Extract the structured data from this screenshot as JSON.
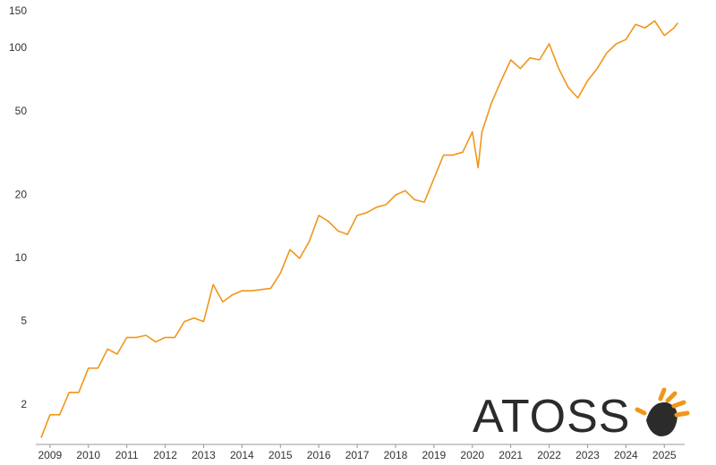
{
  "chart_data": {
    "type": "line",
    "logo": "ATOSS",
    "color": "#f0961a",
    "log_scale_y": true,
    "grid": false,
    "x": [
      2008.77,
      2009.0,
      2009.25,
      2009.5,
      2009.75,
      2010.0,
      2010.25,
      2010.5,
      2010.75,
      2011.0,
      2011.25,
      2011.5,
      2011.75,
      2012.0,
      2012.25,
      2012.5,
      2012.75,
      2013.0,
      2013.25,
      2013.5,
      2013.75,
      2014.0,
      2014.25,
      2014.5,
      2014.75,
      2015.0,
      2015.25,
      2015.5,
      2015.75,
      2016.0,
      2016.25,
      2016.5,
      2016.75,
      2017.0,
      2017.25,
      2017.5,
      2017.75,
      2018.0,
      2018.25,
      2018.5,
      2018.75,
      2019.0,
      2019.25,
      2019.5,
      2019.75,
      2020.0,
      2020.15,
      2020.25,
      2020.5,
      2020.75,
      2021.0,
      2021.25,
      2021.5,
      2021.75,
      2022.0,
      2022.25,
      2022.5,
      2022.75,
      2023.0,
      2023.25,
      2023.5,
      2023.75,
      2024.0,
      2024.25,
      2024.5,
      2024.75,
      2025.0,
      2025.25,
      2025.35
    ],
    "values": [
      1.4,
      1.8,
      1.8,
      2.3,
      2.3,
      3.0,
      3.0,
      3.7,
      3.5,
      4.2,
      4.2,
      4.3,
      4.0,
      4.2,
      4.2,
      5.0,
      5.2,
      5.0,
      7.5,
      6.2,
      6.7,
      7.0,
      7.0,
      7.1,
      7.2,
      8.5,
      11,
      10,
      12,
      16,
      15,
      13.5,
      13,
      16,
      16.5,
      17.5,
      18,
      20,
      21,
      19,
      18.5,
      24,
      31,
      31,
      32,
      40,
      27,
      40,
      55,
      70,
      88,
      80,
      90,
      88,
      105,
      80,
      65,
      58,
      70,
      80,
      95,
      105,
      110,
      130,
      125,
      135,
      115,
      125,
      132
    ],
    "xlim": [
      2008.77,
      2025.67
    ],
    "xticks": [
      2009,
      2010,
      2011,
      2012,
      2013,
      2014,
      2015,
      2016,
      2017,
      2018,
      2019,
      2020,
      2021,
      2022,
      2023,
      2024,
      2025
    ],
    "ylim": [
      1.3,
      160
    ],
    "yticks": [
      2,
      5,
      10,
      20,
      50,
      100,
      150
    ]
  }
}
